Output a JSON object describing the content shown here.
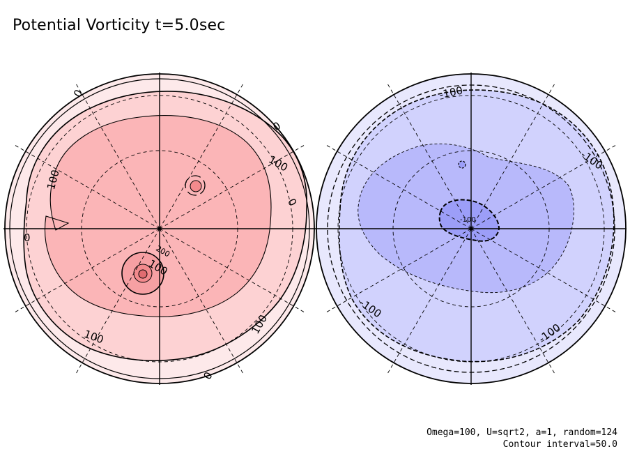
{
  "title": "Potential Vorticity  t=5.0sec",
  "footer": {
    "params": "Omega=100, U=sqrt2, a=1, random=124",
    "contour_interval": "Contour interval=50.0"
  },
  "colors": {
    "background": "#ffffff",
    "left_outer": "#fde9ea",
    "left_mid": "#fdd2d3",
    "left_inner": "#fbb5b7",
    "left_core": "#f38a8d",
    "right_outer": "#e8e8fd",
    "right_mid": "#d1d2fd",
    "right_inner": "#b8b9fb",
    "right_core": "#9c9ef8",
    "line": "#000000"
  },
  "hemispheres": [
    {
      "name": "left",
      "contour_labels": [
        "0",
        "0",
        "0",
        "0",
        "0",
        "100",
        "100",
        "100",
        "100",
        "100",
        "200"
      ]
    },
    {
      "name": "right",
      "contour_labels": [
        "-100",
        "-100",
        "-100",
        "-100",
        "-100"
      ]
    }
  ]
}
